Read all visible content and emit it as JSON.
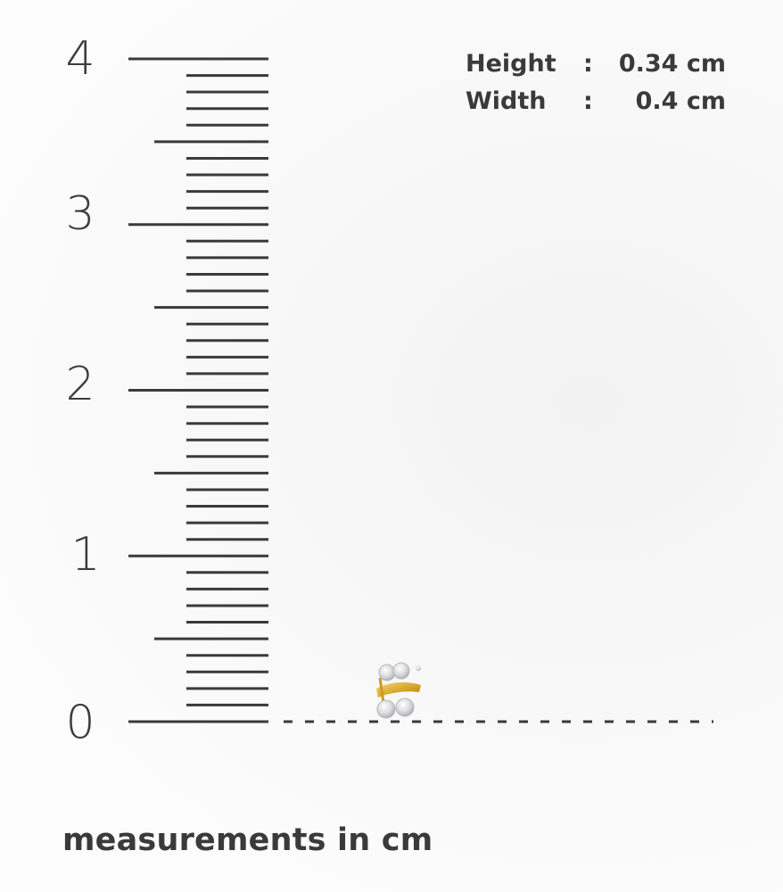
{
  "ruler": {
    "unit_labels": [
      "0",
      "1",
      "2",
      "3",
      "4"
    ]
  },
  "specs": {
    "height_label": "Height",
    "height_value": "0.34 cm",
    "width_label": "Width",
    "width_value": "0.4 cm",
    "separator": ":"
  },
  "caption": "measurements in cm",
  "product": {
    "icon": "diamond-earring-icon",
    "metal_color": "#d8a92a",
    "stone_color": "#e8e8ea"
  },
  "colors": {
    "ink": "#3a3a3a"
  }
}
